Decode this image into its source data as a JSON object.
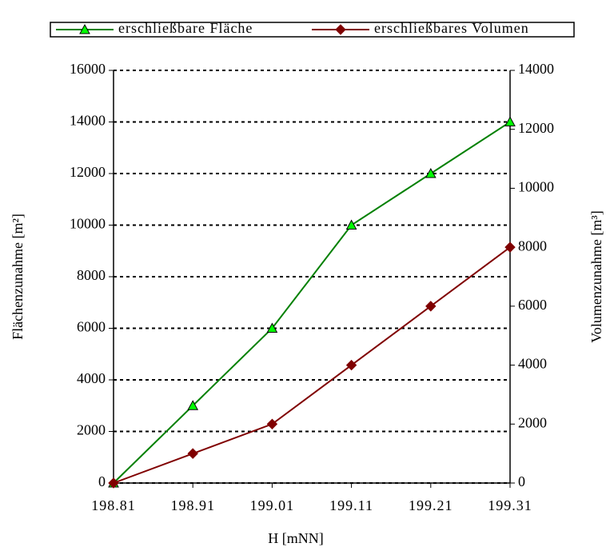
{
  "chart_data": {
    "type": "line",
    "x": [
      198.81,
      198.91,
      199.01,
      199.11,
      199.21,
      199.31
    ],
    "xlim": [
      198.81,
      199.31
    ],
    "xticks": [
      198.81,
      198.91,
      199.01,
      199.11,
      199.21,
      199.31
    ],
    "xlabel": "H [mNN]",
    "ylabel": "Flächenzunahme [m²]",
    "y2label": "Volumenzunahme [m³]",
    "ylim": [
      0,
      16000
    ],
    "yticks": [
      0,
      2000,
      4000,
      6000,
      8000,
      10000,
      12000,
      14000,
      16000
    ],
    "y2lim": [
      0,
      14000
    ],
    "y2ticks": [
      0,
      2000,
      4000,
      6000,
      8000,
      10000,
      12000,
      14000
    ],
    "grid": true,
    "legend": "top",
    "series": [
      {
        "name": "erschließbare Fläche",
        "color": "#008000",
        "marker_color": "#00ff00",
        "marker": "triangle",
        "values": [
          0,
          3000,
          6000,
          10000,
          12000,
          14000
        ]
      },
      {
        "name": "erschließbares Volumen",
        "color": "#800000",
        "marker_color": "#800000",
        "marker": "diamond",
        "axis": "y2",
        "values": [
          0,
          1000,
          2000,
          4000,
          6000,
          8000
        ]
      }
    ]
  }
}
